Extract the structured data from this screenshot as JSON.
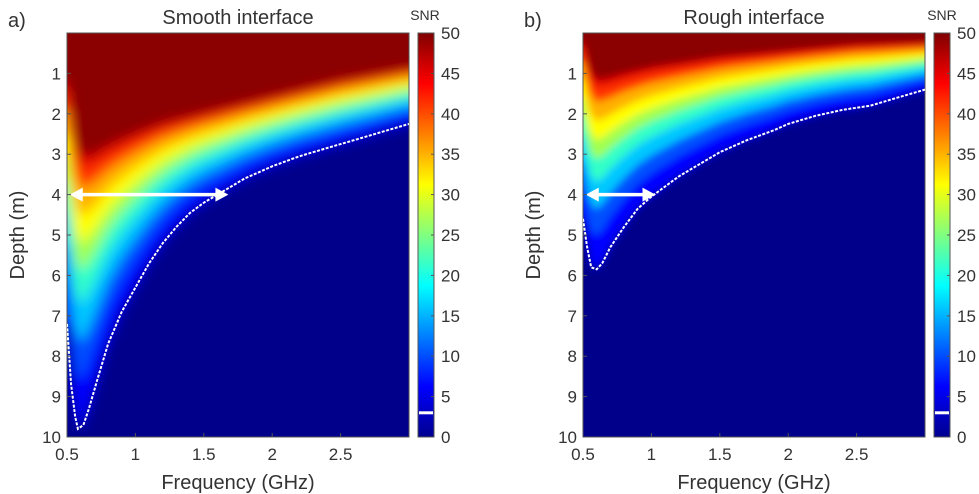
{
  "chart_data": [
    {
      "type": "heatmap",
      "panel_label": "a)",
      "title": "Smooth interface",
      "xlabel": "Frequency (GHz)",
      "ylabel": "Depth (m)",
      "xlim": [
        0.5,
        3.0
      ],
      "ylim": [
        0,
        10
      ],
      "xticks": [
        0.5,
        1,
        1.5,
        2,
        2.5
      ],
      "xtick_labels": [
        "0.5",
        "1",
        "1.5",
        "2",
        "2.5"
      ],
      "yticks": [
        1,
        2,
        3,
        4,
        5,
        6,
        7,
        8,
        9,
        10
      ],
      "ytick_labels": [
        "1",
        "2",
        "3",
        "4",
        "5",
        "6",
        "7",
        "8",
        "9",
        "10"
      ],
      "colorbar": {
        "label": "SNR",
        "range": [
          0,
          50
        ],
        "ticks": [
          0,
          5,
          10,
          15,
          20,
          25,
          30,
          35,
          40,
          45,
          50
        ],
        "tick_labels": [
          "0",
          "5",
          "10",
          "15",
          "20",
          "25",
          "30",
          "35",
          "40",
          "45",
          "50"
        ],
        "threshold_marker": 3
      },
      "threshold_contour": [
        [
          0.5,
          7.2
        ],
        [
          0.53,
          8.7
        ],
        [
          0.56,
          9.5
        ],
        [
          0.58,
          9.8
        ],
        [
          0.62,
          9.7
        ],
        [
          0.66,
          9.3
        ],
        [
          0.72,
          8.6
        ],
        [
          0.8,
          7.7
        ],
        [
          0.9,
          6.9
        ],
        [
          1.0,
          6.3
        ],
        [
          1.1,
          5.7
        ],
        [
          1.2,
          5.2
        ],
        [
          1.3,
          4.8
        ],
        [
          1.4,
          4.45
        ],
        [
          1.5,
          4.2
        ],
        [
          1.6,
          4.0
        ],
        [
          1.7,
          3.8
        ],
        [
          1.8,
          3.6
        ],
        [
          1.9,
          3.45
        ],
        [
          2.0,
          3.3
        ],
        [
          2.2,
          3.05
        ],
        [
          2.4,
          2.85
        ],
        [
          2.6,
          2.65
        ],
        [
          2.8,
          2.45
        ],
        [
          3.0,
          2.25
        ]
      ],
      "band_top_contour": [
        [
          0.5,
          1.2
        ],
        [
          0.55,
          2.6
        ],
        [
          0.6,
          3.05
        ],
        [
          0.7,
          3.0
        ],
        [
          0.8,
          2.8
        ],
        [
          1.0,
          2.5
        ],
        [
          1.2,
          2.25
        ],
        [
          1.5,
          2.0
        ],
        [
          2.0,
          1.6
        ],
        [
          2.5,
          1.2
        ],
        [
          3.0,
          0.9
        ]
      ],
      "arrow": {
        "depth": 4.0,
        "from_freq": 0.52,
        "to_freq": 1.68
      },
      "colors": {
        "high": "#8b0000",
        "low": "#00008b"
      }
    },
    {
      "type": "heatmap",
      "panel_label": "b)",
      "title": "Rough interface",
      "xlabel": "Frequency (GHz)",
      "ylabel": "Depth (m)",
      "xlim": [
        0.5,
        3.0
      ],
      "ylim": [
        0,
        10
      ],
      "xticks": [
        0.5,
        1,
        1.5,
        2,
        2.5
      ],
      "xtick_labels": [
        "0.5",
        "1",
        "1.5",
        "2",
        "2.5"
      ],
      "yticks": [
        1,
        2,
        3,
        4,
        5,
        6,
        7,
        8,
        9,
        10
      ],
      "ytick_labels": [
        "1",
        "2",
        "3",
        "4",
        "5",
        "6",
        "7",
        "8",
        "9",
        "10"
      ],
      "colorbar": {
        "label": "SNR",
        "range": [
          0,
          50
        ],
        "ticks": [
          0,
          5,
          10,
          15,
          20,
          25,
          30,
          35,
          40,
          45,
          50
        ],
        "tick_labels": [
          "0",
          "5",
          "10",
          "15",
          "20",
          "25",
          "30",
          "35",
          "40",
          "45",
          "50"
        ],
        "threshold_marker": 3
      },
      "threshold_contour": [
        [
          0.5,
          4.6
        ],
        [
          0.53,
          5.3
        ],
        [
          0.56,
          5.8
        ],
        [
          0.6,
          5.85
        ],
        [
          0.64,
          5.7
        ],
        [
          0.7,
          5.3
        ],
        [
          0.8,
          4.8
        ],
        [
          0.9,
          4.35
        ],
        [
          1.0,
          4.05
        ],
        [
          1.1,
          3.8
        ],
        [
          1.2,
          3.55
        ],
        [
          1.35,
          3.25
        ],
        [
          1.5,
          2.95
        ],
        [
          1.7,
          2.65
        ],
        [
          1.9,
          2.4
        ],
        [
          2.0,
          2.25
        ],
        [
          2.2,
          2.05
        ],
        [
          2.4,
          1.9
        ],
        [
          2.6,
          1.8
        ],
        [
          2.8,
          1.6
        ],
        [
          3.0,
          1.4
        ]
      ],
      "band_top_contour": [
        [
          0.5,
          0.2
        ],
        [
          0.55,
          0.9
        ],
        [
          0.6,
          1.15
        ],
        [
          0.7,
          1.1
        ],
        [
          0.8,
          1.0
        ],
        [
          1.0,
          0.85
        ],
        [
          1.5,
          0.6
        ],
        [
          2.0,
          0.45
        ],
        [
          2.5,
          0.3
        ],
        [
          3.0,
          0.25
        ]
      ],
      "arrow": {
        "depth": 4.0,
        "from_freq": 0.52,
        "to_freq": 1.03
      },
      "colors": {
        "high": "#8b0000",
        "low": "#00008b"
      }
    }
  ]
}
